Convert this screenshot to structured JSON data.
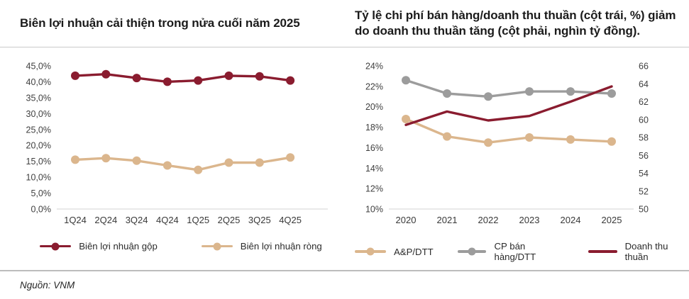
{
  "footer": {
    "source": "Nguồn: VNM"
  },
  "colors": {
    "maroon": "#8A1C2F",
    "tan": "#DBB68D",
    "gray": "#9C9C9C",
    "axis_line": "#dcdcdc",
    "divider_top": "#c9c9c9",
    "divider_bottom": "#bcbcbc"
  },
  "chart_data": [
    {
      "type": "line",
      "title": "Biên lợi nhuận cải thiện trong nửa cuối năm 2025",
      "categories": [
        "1Q24",
        "2Q24",
        "3Q24",
        "4Q24",
        "1Q25",
        "2Q25",
        "3Q25",
        "4Q25"
      ],
      "series": [
        {
          "name": "Biên lợi nhuận gộp",
          "color": "#8A1C2F",
          "marker": true,
          "values": [
            41.9,
            42.4,
            41.2,
            40.0,
            40.4,
            41.9,
            41.7,
            40.4
          ]
        },
        {
          "name": "Biên lợi nhuận ròng",
          "color": "#DBB68D",
          "marker": true,
          "values": [
            15.5,
            16.0,
            15.2,
            13.7,
            12.3,
            14.6,
            14.6,
            16.2
          ]
        }
      ],
      "ylim": [
        0,
        45
      ],
      "y_tick_labels": [
        "45,0%",
        "40,0%",
        "35,0%",
        "30,0%",
        "25,0%",
        "20,0%",
        "15,0%",
        "10,0%",
        "5,0%",
        "0,0%"
      ],
      "xlabel": "",
      "ylabel": "",
      "grid": false,
      "legend_position": "bottom"
    },
    {
      "type": "line",
      "title": "Tỷ lệ chi phí bán hàng/doanh thu thuần (cột trái, %) giảm do doanh thu thuần tăng (cột phải, nghìn tỷ đồng).",
      "categories": [
        "2020",
        "2021",
        "2022",
        "2023",
        "2024",
        "2025"
      ],
      "series": [
        {
          "name": "A&P/DTT",
          "axis": "left",
          "color": "#DBB68D",
          "marker": true,
          "values": [
            18.8,
            17.1,
            16.5,
            17.0,
            16.8,
            16.6
          ]
        },
        {
          "name": "CP bán hàng/DTT",
          "axis": "left",
          "color": "#9C9C9C",
          "marker": true,
          "values": [
            22.6,
            21.3,
            21.0,
            21.5,
            21.5,
            21.3
          ]
        },
        {
          "name": "Doanh thu thuần",
          "axis": "right",
          "color": "#8A1C2F",
          "marker": false,
          "values": [
            59.4,
            60.9,
            59.9,
            60.4,
            62.0,
            63.7
          ]
        }
      ],
      "ylim_left": [
        10,
        24
      ],
      "ylim_right": [
        50,
        66
      ],
      "y_tick_labels_left": [
        "24%",
        "22%",
        "20%",
        "18%",
        "16%",
        "14%",
        "12%",
        "10%"
      ],
      "y_tick_labels_right": [
        "66",
        "64",
        "62",
        "60",
        "58",
        "56",
        "54",
        "52",
        "50"
      ],
      "xlabel": "",
      "ylabel": "",
      "grid": false,
      "legend_position": "bottom"
    }
  ]
}
